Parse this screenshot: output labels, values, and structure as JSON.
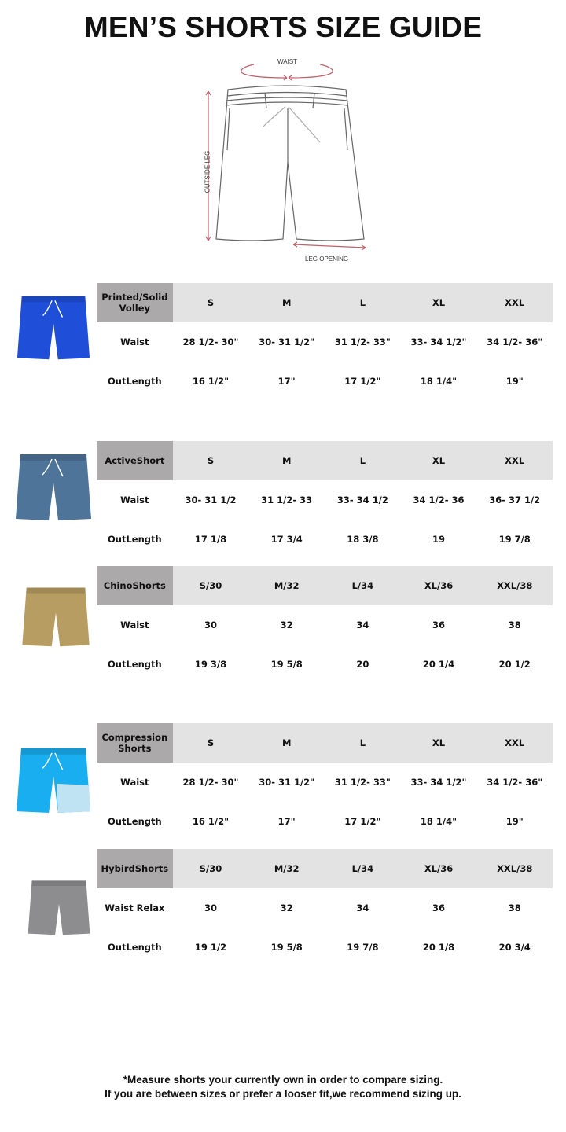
{
  "title": "MEN’S SHORTS SIZE GUIDE",
  "diagram": {
    "waist_label": "WAIST",
    "outside_leg_label": "OUTSIDE LEG",
    "leg_opening_label": "LEG OPENING",
    "arrow_color": "#c0606a"
  },
  "tables": [
    {
      "name": "Printed/Solid Volley",
      "image_color": "#1f4fd8",
      "sizes": [
        "S",
        "M",
        "L",
        "XL",
        "XXL"
      ],
      "rows": [
        {
          "label": "Waist",
          "values": [
            "28 1/2- 30\"",
            "30- 31 1/2\"",
            "31 1/2- 33\"",
            "33- 34 1/2\"",
            "34 1/2- 36\""
          ]
        },
        {
          "label": "OutLength",
          "values": [
            "16 1/2\"",
            "17\"",
            "17 1/2\"",
            "18 1/4\"",
            "19\""
          ]
        }
      ]
    },
    {
      "name": "ActiveShort",
      "image_color": "#4f7499",
      "sizes": [
        "S",
        "M",
        "L",
        "XL",
        "XXL"
      ],
      "rows": [
        {
          "label": "Waist",
          "values": [
            "30- 31 1/2",
            "31 1/2- 33",
            "33- 34 1/2",
            "34 1/2- 36",
            "36- 37 1/2"
          ]
        },
        {
          "label": "OutLength",
          "values": [
            "17 1/8",
            "17 3/4",
            "18 3/8",
            "19",
            "19 7/8"
          ]
        }
      ]
    },
    {
      "name": "ChinoShorts",
      "image_color": "#b89d62",
      "sizes": [
        "S/30",
        "M/32",
        "L/34",
        "XL/36",
        "XXL/38"
      ],
      "rows": [
        {
          "label": "Waist",
          "values": [
            "30",
            "32",
            "34",
            "36",
            "38"
          ]
        },
        {
          "label": "OutLength",
          "values": [
            "19 3/8",
            "19 5/8",
            "20",
            "20 1/4",
            "20 1/2"
          ]
        }
      ]
    },
    {
      "name": "Compression Shorts",
      "image_color": "#19aef0",
      "sizes": [
        "S",
        "M",
        "L",
        "XL",
        "XXL"
      ],
      "rows": [
        {
          "label": "Waist",
          "values": [
            "28 1/2- 30\"",
            "30- 31 1/2\"",
            "31 1/2- 33\"",
            "33- 34 1/2\"",
            "34 1/2- 36\""
          ]
        },
        {
          "label": "OutLength",
          "values": [
            "16 1/2\"",
            "17\"",
            "17 1/2\"",
            "18 1/4\"",
            "19\""
          ]
        }
      ]
    },
    {
      "name": "HybirdShorts",
      "image_color": "#8d8d8f",
      "sizes": [
        "S/30",
        "M/32",
        "L/34",
        "XL/36",
        "XXL/38"
      ],
      "rows": [
        {
          "label": "Waist Relax",
          "values": [
            "30",
            "32",
            "34",
            "36",
            "38"
          ]
        },
        {
          "label": "OutLength",
          "values": [
            "19 1/2",
            "19 5/8",
            "19 7/8",
            "20 1/8",
            "20 3/4"
          ]
        }
      ]
    }
  ],
  "footer": {
    "line1": "*Measure shorts your currently own in order to compare sizing.",
    "line2": "If you are between sizes or prefer a looser fit,we recommend sizing up."
  }
}
